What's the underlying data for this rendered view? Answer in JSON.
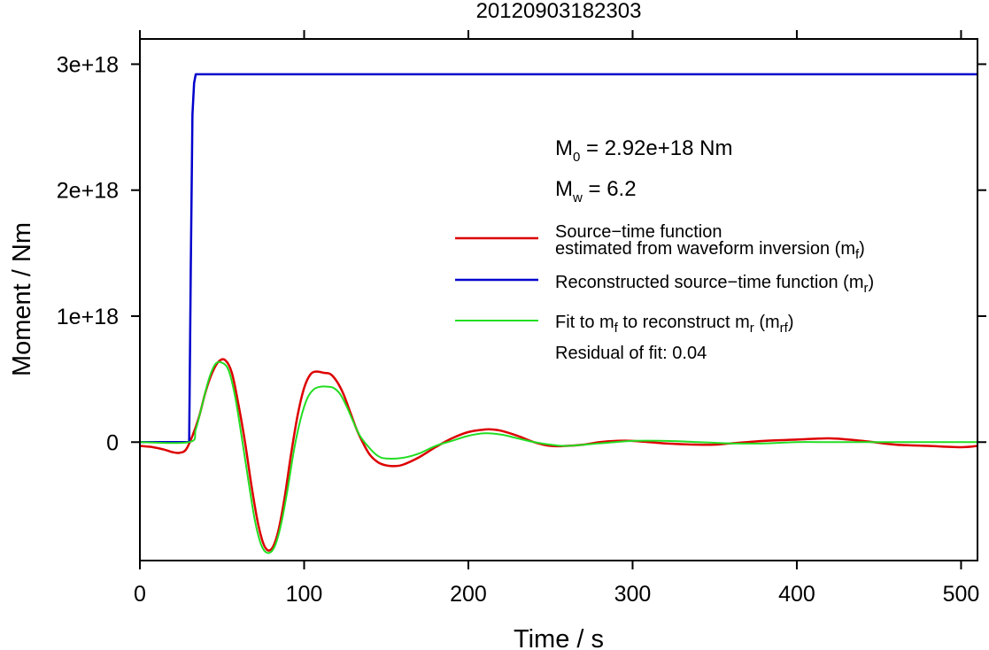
{
  "title": "20120903182303",
  "xlabel": "Time / s",
  "ylabel": "Moment / Nm",
  "annotations": {
    "m0": {
      "main": "M",
      "sub": "0",
      "rest": " = 2.92e+18 Nm"
    },
    "mw": {
      "main": "M",
      "sub": "w",
      "rest": " = 6.2"
    },
    "residual": "Residual of fit: 0.04"
  },
  "legend": [
    {
      "color": "#dd0000",
      "line1": "Source−time function",
      "line2_pre": "estimated from waveform inversion (m",
      "line2_sub": "f",
      "line2_post": ")"
    },
    {
      "color": "#0000cc",
      "line1_pre": "Reconstructed source−time function (m",
      "line1_sub": "r",
      "line1_post": ")"
    },
    {
      "color": "#22dd22",
      "p1": "Fit to m",
      "s1": "f",
      "p2": " to reconstruct m",
      "s2": "r",
      "p3": " (m",
      "s3": "rf",
      "p4": ")"
    }
  ],
  "chart_data": {
    "type": "line",
    "title": "20120903182303",
    "xlabel": "Time / s",
    "ylabel": "Moment / Nm",
    "xlim": [
      0,
      510
    ],
    "ylim": [
      -9.4e+17,
      3.2e+18
    ],
    "x_ticks": [
      0,
      100,
      200,
      300,
      400,
      500
    ],
    "x_tick_labels": [
      "0",
      "100",
      "200",
      "300",
      "400",
      "500"
    ],
    "y_ticks": [
      0,
      1e+18,
      2e+18,
      3e+18
    ],
    "y_tick_labels": [
      "0",
      "1e+18",
      "2e+18",
      "3e+18"
    ],
    "grid": false,
    "legend_position": "right",
    "series": [
      {
        "name": "Source−time function estimated from waveform inversion (mf)",
        "color": "#dd0000",
        "x": [
          0,
          8,
          15,
          20,
          24,
          28,
          32,
          36,
          40,
          44,
          48,
          52,
          56,
          60,
          64,
          68,
          72,
          76,
          80,
          84,
          88,
          92,
          96,
          100,
          104,
          108,
          112,
          116,
          120,
          124,
          128,
          132,
          136,
          140,
          145,
          150,
          155,
          160,
          170,
          180,
          190,
          200,
          210,
          215,
          220,
          230,
          240,
          250,
          260,
          270,
          280,
          290,
          300,
          320,
          340,
          350,
          360,
          380,
          400,
          420,
          440,
          460,
          480,
          500,
          510
        ],
        "y": [
          -3e+16,
          -4e+16,
          -6e+16,
          -8e+16,
          -8.5e+16,
          -6e+16,
          5e+16,
          2e+17,
          4e+17,
          5.5e+17,
          6.4e+17,
          6.5e+17,
          5.5e+17,
          3e+17,
          0,
          -3.5e+17,
          -6.5e+17,
          -8.3e+17,
          -8.5e+17,
          -7.2e+17,
          -4.5e+17,
          -1e+17,
          2.1e+17,
          4.3e+17,
          5.4e+17,
          5.6e+17,
          5.5e+17,
          5.4e+17,
          4.8e+17,
          3.8e+17,
          2.4e+17,
          1e+17,
          -1e+16,
          -1e+17,
          -1.6e+17,
          -1.85e+17,
          -1.9e+17,
          -1.8e+17,
          -1.2e+17,
          -4e+16,
          3e+16,
          8e+16,
          1e+17,
          1e+17,
          9e+16,
          5e+16,
          0,
          -3e+16,
          -3e+16,
          -2e+16,
          0,
          1e+16,
          1e+16,
          -1e+16,
          -2e+16,
          -2e+16,
          -1e+16,
          1e+16,
          2e+16,
          3e+16,
          1e+16,
          -2e+16,
          -3e+16,
          -4e+16,
          -3e+16
        ]
      },
      {
        "name": "Reconstructed source−time function (mr)",
        "color": "#0000cc",
        "x": [
          0,
          30,
          31,
          32,
          33,
          34,
          35,
          510
        ],
        "y": [
          0,
          0,
          1.4e+18,
          2.6e+18,
          2.85e+18,
          2.92e+18,
          2.92e+18,
          2.92e+18
        ]
      },
      {
        "name": "Fit to mf to reconstruct mr (mrf)",
        "color": "#22dd22",
        "x": [
          0,
          30,
          34,
          38,
          42,
          46,
          50,
          54,
          58,
          62,
          66,
          70,
          74,
          78,
          82,
          86,
          90,
          94,
          98,
          102,
          106,
          110,
          114,
          118,
          122,
          126,
          130,
          134,
          140,
          145,
          150,
          160,
          170,
          180,
          190,
          200,
          210,
          220,
          230,
          240,
          250,
          260,
          280,
          300,
          320,
          340,
          360,
          380,
          400,
          420,
          450,
          480,
          510
        ],
        "y": [
          0,
          0,
          1e+17,
          3e+17,
          5e+17,
          6.2e+17,
          6.3e+17,
          5.7e+17,
          3.6e+17,
          4e+16,
          -3e+17,
          -6.2e+17,
          -8.2e+17,
          -8.8e+17,
          -8.3e+17,
          -6.5e+17,
          -3.7e+17,
          -5e+16,
          1.9e+17,
          3.5e+17,
          4.2e+17,
          4.4e+17,
          4.4e+17,
          4.3e+17,
          3.8e+17,
          2.8e+17,
          1.6e+17,
          5e+16,
          -5e+16,
          -1.1e+17,
          -1.3e+17,
          -1.25e+17,
          -9e+16,
          -3e+16,
          1e+16,
          5e+16,
          7e+16,
          6e+16,
          3e+16,
          0,
          -2e+16,
          -3e+16,
          -1e+16,
          1e+16,
          1e+16,
          0,
          -1e+16,
          -1e+16,
          0,
          0,
          0,
          0,
          0
        ]
      }
    ]
  }
}
